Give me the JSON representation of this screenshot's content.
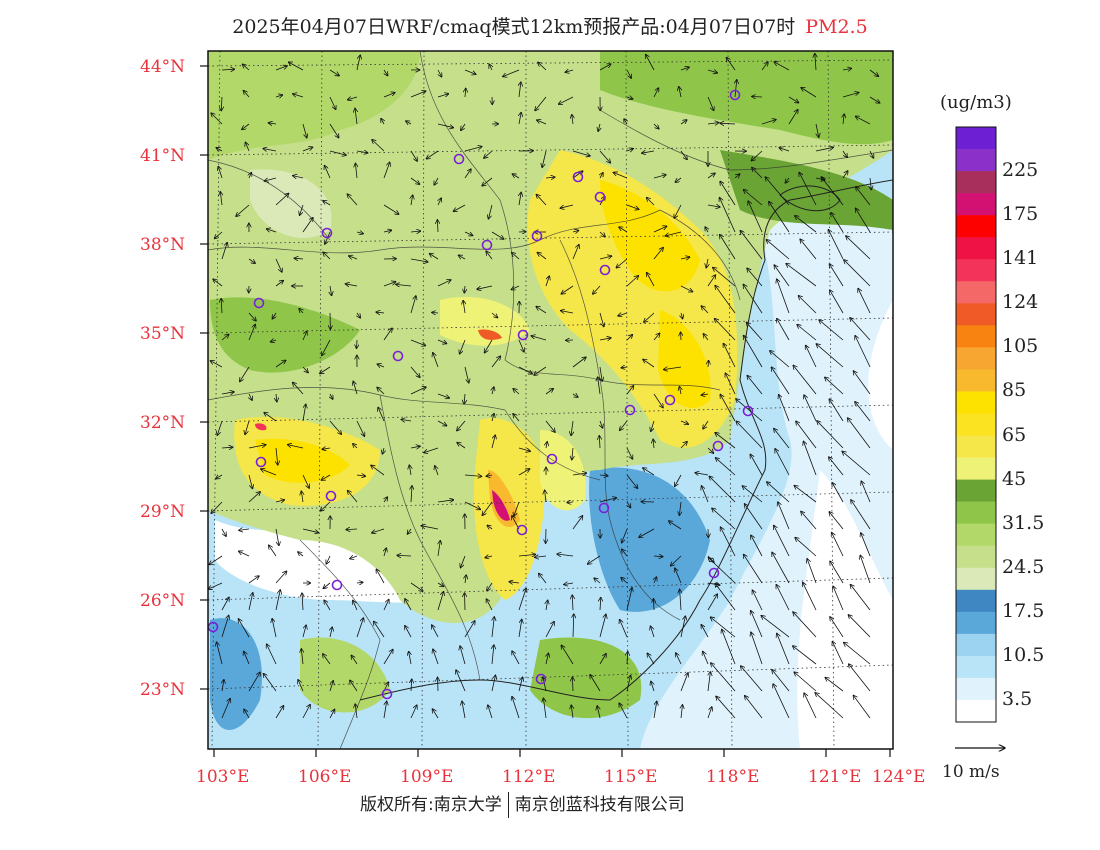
{
  "header": {
    "title": "2025年04月07日WRF/cmaq模式12km预报产品:04月07日07时",
    "species": "PM2.5"
  },
  "map": {
    "lat_ticks": [
      "44°N",
      "41°N",
      "38°N",
      "35°N",
      "32°N",
      "29°N",
      "26°N",
      "23°N"
    ],
    "lon_ticks": [
      "103°E",
      "106°E",
      "109°E",
      "112°E",
      "115°E",
      "118°E",
      "121°E",
      "124°E"
    ]
  },
  "colorbar": {
    "unit": "(ug/m3)",
    "colors": [
      "#ffffff",
      "#e0f3fc",
      "#b9e4f7",
      "#9bd3f0",
      "#5aa7da",
      "#3f87c2",
      "#dbe9b8",
      "#c5df8a",
      "#b3d86a",
      "#8fc64a",
      "#6aa434",
      "#eef276",
      "#f5e64a",
      "#fbe321",
      "#fde200",
      "#f8b92e",
      "#f7a631",
      "#f88311",
      "#ef5a27",
      "#f46868",
      "#f4335a",
      "#ef1245",
      "#fd0000",
      "#d21173",
      "#a82e5b",
      "#8b30c9",
      "#6d1fd4"
    ],
    "labels": [
      "3.5",
      "10.5",
      "17.5",
      "24.5",
      "31.5",
      "45",
      "65",
      "85",
      "105",
      "124",
      "141",
      "175",
      "225"
    ]
  },
  "legend": {
    "wind_label": "10 m/s"
  },
  "footer": {
    "copyright_left": "版权所有:南京大学",
    "copyright_right": "南京创蓝科技有限公司"
  }
}
